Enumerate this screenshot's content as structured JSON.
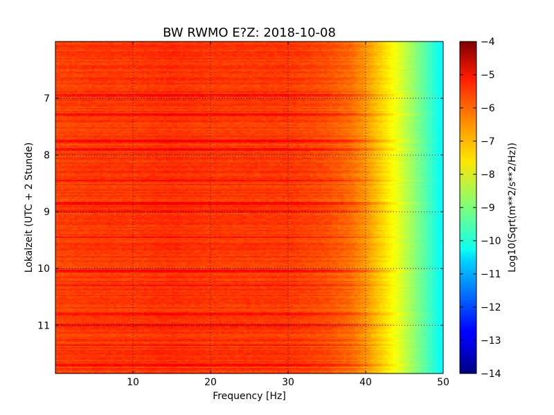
{
  "chart_data": {
    "type": "heatmap",
    "title": "BW RWMO E?Z: 2018-10-08",
    "xlabel": "Frequency [Hz]",
    "ylabel": "Lokalzeit (UTC + 2 Stunde)",
    "xlim": [
      0,
      50
    ],
    "ylim": [
      6.0,
      11.85
    ],
    "x_ticks": [
      10,
      20,
      30,
      40,
      50
    ],
    "x_tick_labels": [
      "10",
      "20",
      "30",
      "40",
      "50"
    ],
    "y_ticks": [
      7,
      8,
      9,
      10,
      11
    ],
    "y_tick_labels": [
      "7",
      "8",
      "9",
      "10",
      "11"
    ],
    "y_inverted": true,
    "grid": true,
    "colorbar": {
      "label": "Log10(Sqrt(m**2/s**2/Hz))",
      "range": [
        -14,
        -4
      ],
      "ticks": [
        -4,
        -5,
        -6,
        -7,
        -8,
        -9,
        -10,
        -11,
        -12,
        -13,
        -14
      ],
      "tick_labels": [
        "−4",
        "−5",
        "−6",
        "−7",
        "−8",
        "−9",
        "−10",
        "−11",
        "−12",
        "−13",
        "−14"
      ],
      "colormap": "jet"
    },
    "spectrum_profile": {
      "frequency_hz": [
        0,
        5,
        10,
        15,
        20,
        25,
        30,
        35,
        38,
        40,
        42,
        44,
        46,
        48,
        50
      ],
      "value": [
        -5.9,
        -5.8,
        -5.8,
        -5.7,
        -5.8,
        -5.8,
        -5.8,
        -6.0,
        -6.3,
        -6.7,
        -7.3,
        -7.9,
        -8.7,
        -9.5,
        -10.3
      ]
    },
    "strong_bands_hours": [
      6.95,
      7.3,
      7.75,
      7.9,
      8.45,
      8.85,
      9.0,
      9.45,
      10.05,
      10.3,
      10.8,
      11.0,
      11.35,
      11.7
    ]
  }
}
